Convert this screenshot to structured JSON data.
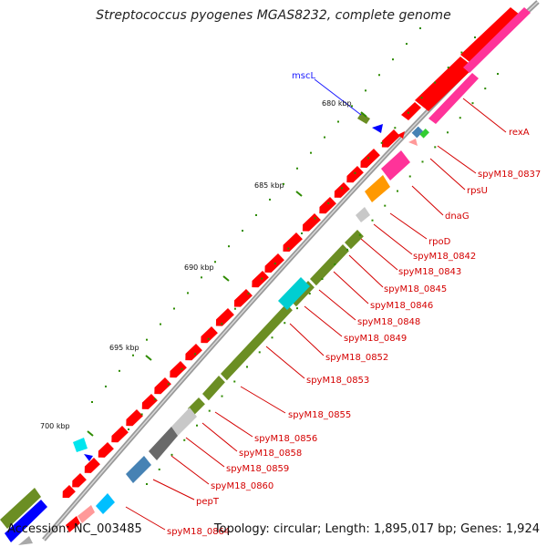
{
  "title": "Streptococcus pyogenes MGAS8232, complete genome",
  "footer": {
    "accession": "Accession: NC_003485",
    "details": "Topology: circular; Length: 1,895,017 bp; Genes: 1,924"
  },
  "colors": {
    "cds": "#ff0000",
    "olive": "#6b8e23",
    "pink": "#ff3399",
    "blue": "#4682b4",
    "cyan": "#00ced1",
    "orange": "#ff9900",
    "gray": "#a9a9a9",
    "darkgray": "#696969",
    "backbone": "#9a9a9a",
    "label": "#d40000",
    "mscl": "#1a1aff"
  },
  "scale": {
    "ticks": [
      "680 kbp",
      "685 kbp",
      "690 kbp",
      "695 kbp",
      "700 kbp"
    ]
  },
  "feature_labels": [
    "rexA",
    "spyM18_0837",
    "rpsU",
    "dnaG",
    "rpoD",
    "spyM18_0842",
    "spyM18_0843",
    "spyM18_0845",
    "spyM18_0846",
    "spyM18_0848",
    "spyM18_0849",
    "spyM18_0852",
    "spyM18_0853",
    "spyM18_0855",
    "spyM18_0856",
    "spyM18_0858",
    "spyM18_0859",
    "spyM18_0860",
    "pepT",
    "spyM18_0864"
  ],
  "inner_label": "mscL"
}
